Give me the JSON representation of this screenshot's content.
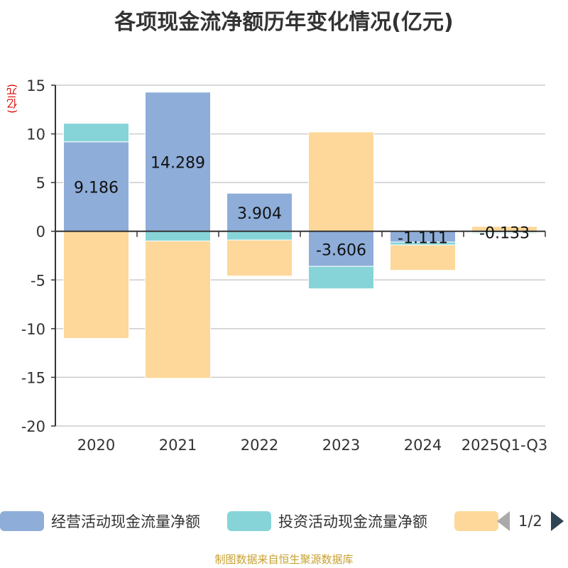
{
  "chart_data": {
    "type": "bar",
    "stacked": true,
    "title": "各项现金流净额历年变化情况(亿元)",
    "ylabel": "(亿元)",
    "categories": [
      "2020",
      "2021",
      "2022",
      "2023",
      "2024",
      "2025Q1-Q3"
    ],
    "ylim": [
      -20,
      15
    ],
    "yticks": [
      15,
      10,
      5,
      0,
      -5,
      -10,
      -15,
      -20
    ],
    "series": [
      {
        "name": "经营活动现金流量净额",
        "color": "#8eadd9",
        "values": [
          9.186,
          14.289,
          3.904,
          -3.606,
          -1.111,
          -0.133
        ]
      },
      {
        "name": "投资活动现金流量净额",
        "color": "#87d4d8",
        "values": [
          1.9,
          -1.0,
          -0.9,
          -2.3,
          -0.3,
          -0.1
        ]
      },
      {
        "name": "",
        "color": "#fdd89a",
        "values": [
          -11.0,
          -14.1,
          -3.7,
          10.2,
          -2.6,
          0.5
        ]
      }
    ],
    "data_labels": [
      "9.186",
      "14.289",
      "3.904",
      "-3.606",
      "-1.111",
      "-0.133"
    ]
  },
  "legend": {
    "items": [
      {
        "label": "经营活动现金流量净额",
        "color": "#8eadd9"
      },
      {
        "label": "投资活动现金流量净额",
        "color": "#87d4d8"
      },
      {
        "label": "",
        "color": "#fdd89a"
      }
    ],
    "page": "1/2"
  },
  "source": "制图数据来自恒生聚源数据库"
}
